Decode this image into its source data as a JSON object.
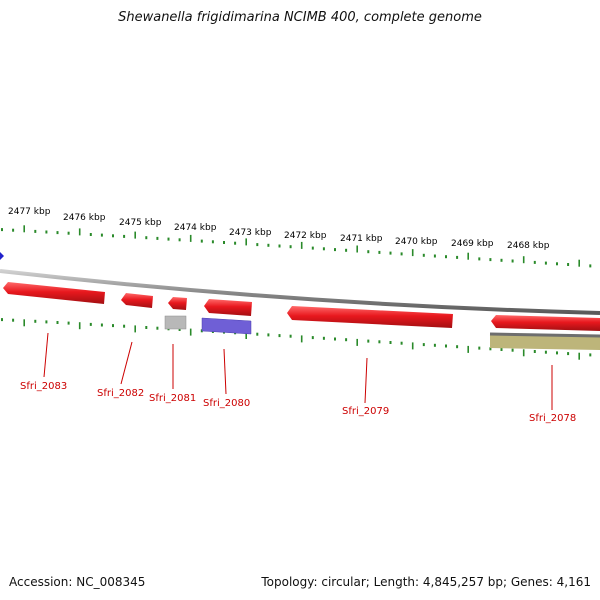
{
  "title": "Shewanella frigidimarina NCIMB 400, complete genome",
  "accession": "Accession: NC_008345",
  "summary": "Topology: circular; Length: 4,845,257 bp; Genes: 4,161",
  "scale_labels": [
    "2477 kbp",
    "2476 kbp",
    "2475 kbp",
    "2474 kbp",
    "2473 kbp",
    "2472 kbp",
    "2471 kbp",
    "2470 kbp",
    "2469 kbp",
    "2468 kbp"
  ],
  "genes": [
    "Sfri_2083",
    "Sfri_2082",
    "Sfri_2081",
    "Sfri_2080",
    "Sfri_2079",
    "Sfri_2078"
  ],
  "colors": {
    "gene": "#e8181e",
    "gene_label": "#cc0000",
    "tick": "#2a8a2a",
    "backbone": "#8a8a8a",
    "grey_feature": "#b8b8b8",
    "blue_feature": "#6f5fd6",
    "olive_feature": "#bdb57a"
  }
}
